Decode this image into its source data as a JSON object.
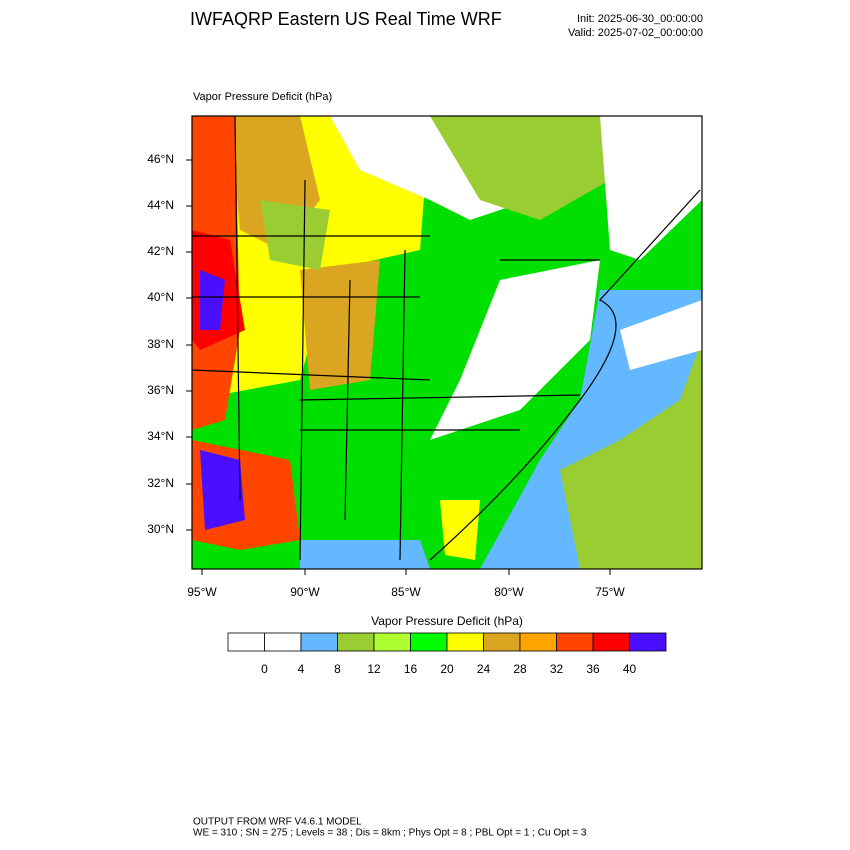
{
  "header": {
    "title": "IWFAQRP Eastern US Real Time WRF",
    "init": "Init: 2025-06-30_00:00:00",
    "valid": "Valid: 2025-07-02_00:00:00"
  },
  "map": {
    "label": "Vapor Pressure Deficit   (hPa)",
    "lat_labels": [
      "46°N",
      "44°N",
      "42°N",
      "40°N",
      "38°N",
      "36°N",
      "34°N",
      "32°N",
      "30°N"
    ],
    "lon_labels": [
      "95°W",
      "90°W",
      "85°W",
      "80°W",
      "75°W"
    ]
  },
  "colorbar": {
    "title": "Vapor Pressure Deficit  (hPa)",
    "colors": [
      "#ffffff",
      "#ffffff",
      "#63b8ff",
      "#9acd32",
      "#adff2f",
      "#00ff00",
      "#ffff00",
      "#daa520",
      "#ffa500",
      "#ff4500",
      "#ff0000",
      "#4b0fff"
    ],
    "ticks": [
      0,
      4,
      8,
      12,
      16,
      20,
      24,
      28,
      32,
      36,
      40
    ]
  },
  "footer": {
    "line1": "OUTPUT FROM WRF V4.6.1 MODEL",
    "line2": "WE = 310 ; SN = 275 ; Levels = 38 ; Dis = 8km ; Phys Opt = 8 ; PBL Opt = 1 ; Cu Opt = 3"
  }
}
